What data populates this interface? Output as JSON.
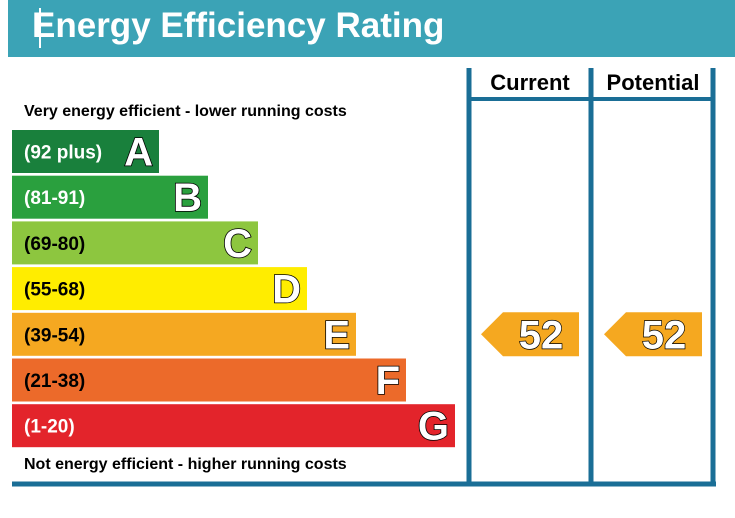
{
  "title": "Energy Efficiency Rating",
  "top_note": "Very energy efficient - lower running costs",
  "bottom_note": "Not energy efficient - higher running costs",
  "columns": {
    "current": "Current",
    "potential": "Potential"
  },
  "colors": {
    "header": "#3ba3b6",
    "frame": "#1a6e96",
    "arrow": "#f5a820"
  },
  "chart_data": {
    "type": "bar",
    "categories": [
      "A",
      "B",
      "C",
      "D",
      "E",
      "F",
      "G"
    ],
    "bands": [
      {
        "letter": "A",
        "range": "(92 plus)",
        "color": "#19803c",
        "text_color": "#ffffff"
      },
      {
        "letter": "B",
        "range": "(81-91)",
        "color": "#2aa03e",
        "text_color": "#ffffff"
      },
      {
        "letter": "C",
        "range": "(69-80)",
        "color": "#8dc63f",
        "text_color": "#000000"
      },
      {
        "letter": "D",
        "range": "(55-68)",
        "color": "#ffed00",
        "text_color": "#000000"
      },
      {
        "letter": "E",
        "range": "(39-54)",
        "color": "#f5a821",
        "text_color": "#000000"
      },
      {
        "letter": "F",
        "range": "(21-38)",
        "color": "#ec6a2a",
        "text_color": "#000000"
      },
      {
        "letter": "G",
        "range": "(1-20)",
        "color": "#e3242b",
        "text_color": "#ffffff"
      }
    ],
    "current": 52,
    "potential": 52
  }
}
